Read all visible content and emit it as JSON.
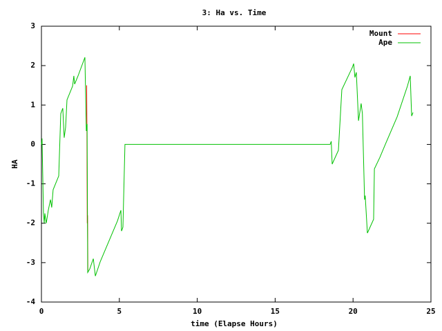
{
  "chart_data": {
    "type": "line",
    "title": "3: Ha vs. Time",
    "x_label": "time (Elapse Hours)",
    "y_label": "HA",
    "xlim": [
      0,
      25
    ],
    "xticks": [
      0,
      5,
      10,
      15,
      20,
      25
    ],
    "ylim": [
      -4,
      3
    ],
    "yticks": [
      -4,
      -3,
      -2,
      -1,
      0,
      1,
      2,
      3
    ],
    "legend": "top-right",
    "series": [
      {
        "name": "Mount",
        "color": "#ff0000",
        "x": [
          2.9,
          2.92,
          2.94,
          2.96,
          2.98
        ],
        "values": [
          1.5,
          0.4,
          -2.0,
          -1.8,
          -3.2
        ]
      },
      {
        "name": "Ape",
        "color": "#00c000",
        "x": [
          0,
          0.04,
          0.09,
          0.13,
          0.18,
          0.22,
          0.31,
          0.44,
          0.58,
          0.66,
          0.75,
          1.11,
          1.24,
          1.37,
          1.46,
          1.55,
          1.64,
          2.0,
          2.08,
          2.13,
          2.35,
          2.79,
          2.88,
          2.93,
          2.97,
          3.1,
          3.33,
          3.46,
          3.77,
          4.88,
          5.1,
          5.14,
          5.23,
          5.36,
          18.53,
          18.6,
          18.66,
          19.06,
          19.28,
          19.95,
          20.04,
          20.12,
          20.21,
          20.35,
          20.52,
          20.6,
          20.74,
          20.78,
          20.92,
          21.32,
          21.37,
          21.72,
          22.07,
          22.83,
          23.49,
          23.67,
          23.76,
          23.85
        ],
        "values": [
          0,
          0.15,
          -0.9,
          -1.75,
          -2.0,
          -1.75,
          -2.0,
          -1.67,
          -1.4,
          -1.6,
          -1.15,
          -0.8,
          0.78,
          0.92,
          0.17,
          0.43,
          1.13,
          1.48,
          1.74,
          1.53,
          1.74,
          2.21,
          0.34,
          0.52,
          -3.25,
          -3.16,
          -2.9,
          -3.34,
          -2.98,
          -1.94,
          -1.67,
          -2.2,
          -2.1,
          0,
          0,
          0.08,
          -0.5,
          -0.15,
          1.39,
          1.95,
          2.05,
          1.7,
          1.83,
          0.6,
          1.04,
          0.78,
          -1.4,
          -1.3,
          -2.25,
          -1.9,
          -0.62,
          -0.33,
          0,
          0.7,
          1.48,
          1.74,
          0.72,
          0.81
        ]
      }
    ]
  }
}
